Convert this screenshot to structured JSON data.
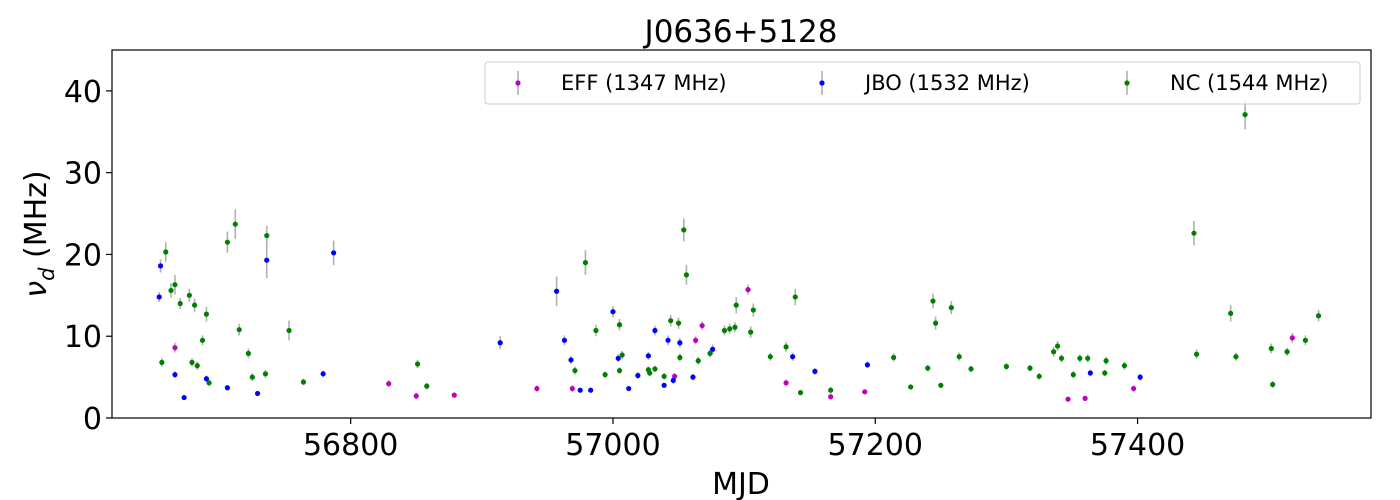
{
  "chart_data": {
    "type": "scatter",
    "title": "J0636+5128",
    "xlabel": "MJD",
    "ylabel_symbol": "ν",
    "ylabel_subscript": "d",
    "ylabel_unit": " (MHz)",
    "xlim": [
      56618,
      57578
    ],
    "ylim": [
      0,
      45
    ],
    "xticks": [
      56800,
      57000,
      57200,
      57400
    ],
    "yticks": [
      0,
      10,
      20,
      30,
      40
    ],
    "grid": false,
    "legend_position": "top-right",
    "errorbar_color": "#b0b0b0",
    "series": [
      {
        "name": "EFF (1347 MHz)",
        "color": "#bf00bf",
        "points": [
          [
            56666,
            8.6,
            0.6
          ],
          [
            56829,
            4.2,
            0.4
          ],
          [
            56850,
            2.7,
            0.4
          ],
          [
            56879,
            2.8,
            0.3
          ],
          [
            56942,
            3.6,
            0.4
          ],
          [
            56969,
            3.6,
            0.4
          ],
          [
            57047,
            5.1,
            0.4
          ],
          [
            57063,
            9.5,
            0.5
          ],
          [
            57068,
            11.3,
            0.5
          ],
          [
            57103,
            15.7,
            0.6
          ],
          [
            57132,
            4.3,
            0.4
          ],
          [
            57166,
            2.6,
            0.3
          ],
          [
            57192,
            3.2,
            0.3
          ],
          [
            57347,
            2.3,
            0.3
          ],
          [
            57360,
            2.4,
            0.3
          ],
          [
            57397,
            3.6,
            0.4
          ],
          [
            57518,
            9.8,
            0.6
          ]
        ]
      },
      {
        "name": "JBO (1532 MHz)",
        "color": "#0000ff",
        "points": [
          [
            56654,
            14.8,
            0.6
          ],
          [
            56655,
            18.6,
            0.8
          ],
          [
            56666,
            5.3,
            0.4
          ],
          [
            56673,
            2.5,
            0.3
          ],
          [
            56690,
            4.8,
            0.4
          ],
          [
            56706,
            3.7,
            0.3
          ],
          [
            56729,
            3.0,
            0.3
          ],
          [
            56736,
            19.3,
            2.2
          ],
          [
            56779,
            5.4,
            0.4
          ],
          [
            56787,
            20.2,
            1.5
          ],
          [
            56914,
            9.2,
            0.8
          ],
          [
            56957,
            15.5,
            1.8
          ],
          [
            56963,
            9.5,
            0.6
          ],
          [
            56968,
            7.1,
            0.5
          ],
          [
            56975,
            3.4,
            0.3
          ],
          [
            56983,
            3.4,
            0.3
          ],
          [
            57000,
            13.0,
            0.7
          ],
          [
            57004,
            7.3,
            0.5
          ],
          [
            57012,
            3.6,
            0.3
          ],
          [
            57019,
            5.2,
            0.4
          ],
          [
            57027,
            7.6,
            0.5
          ],
          [
            57032,
            10.7,
            0.6
          ],
          [
            57039,
            4.0,
            0.3
          ],
          [
            57042,
            9.5,
            0.6
          ],
          [
            57046,
            4.6,
            0.4
          ],
          [
            57051,
            9.2,
            0.6
          ],
          [
            57061,
            5.0,
            0.4
          ],
          [
            57076,
            8.4,
            0.6
          ],
          [
            57137,
            7.5,
            0.5
          ],
          [
            57154,
            5.7,
            0.4
          ],
          [
            57194,
            6.5,
            0.4
          ],
          [
            57364,
            5.5,
            0.4
          ],
          [
            57402,
            5.0,
            0.4
          ]
        ]
      },
      {
        "name": "NC (1544 MHz)",
        "color": "#008000",
        "points": [
          [
            56656,
            6.8,
            0.5
          ],
          [
            56659,
            20.3,
            1.2
          ],
          [
            56663,
            15.6,
            0.9
          ],
          [
            56666,
            16.3,
            1.2
          ],
          [
            56670,
            14.0,
            0.7
          ],
          [
            56677,
            15.0,
            0.8
          ],
          [
            56679,
            6.8,
            0.5
          ],
          [
            56681,
            13.8,
            0.8
          ],
          [
            56683,
            6.4,
            0.5
          ],
          [
            56687,
            9.5,
            0.6
          ],
          [
            56690,
            12.7,
            0.9
          ],
          [
            56692,
            4.3,
            0.4
          ],
          [
            56706,
            21.5,
            1.3
          ],
          [
            56712,
            23.7,
            1.8
          ],
          [
            56715,
            10.8,
            0.7
          ],
          [
            56722,
            7.9,
            0.6
          ],
          [
            56725,
            5.0,
            0.5
          ],
          [
            56735,
            5.4,
            0.5
          ],
          [
            56736,
            22.3,
            1.2
          ],
          [
            56753,
            10.7,
            1.2
          ],
          [
            56764,
            4.4,
            0.4
          ],
          [
            56851,
            6.6,
            0.5
          ],
          [
            56858,
            3.9,
            0.4
          ],
          [
            56971,
            5.8,
            0.5
          ],
          [
            56979,
            19.0,
            1.5
          ],
          [
            56987,
            10.7,
            0.7
          ],
          [
            56994,
            5.3,
            0.4
          ],
          [
            57005,
            11.4,
            0.7
          ],
          [
            57005,
            5.8,
            0.4
          ],
          [
            57007,
            7.7,
            0.5
          ],
          [
            57027,
            5.9,
            0.4
          ],
          [
            57028,
            5.5,
            0.4
          ],
          [
            57032,
            6.0,
            0.4
          ],
          [
            57039,
            5.1,
            0.4
          ],
          [
            57044,
            11.9,
            0.7
          ],
          [
            57050,
            11.6,
            0.7
          ],
          [
            57051,
            7.4,
            0.5
          ],
          [
            57054,
            23.0,
            1.4
          ],
          [
            57056,
            17.5,
            1.2
          ],
          [
            57065,
            7.0,
            0.5
          ],
          [
            57074,
            7.9,
            0.5
          ],
          [
            57085,
            10.7,
            0.6
          ],
          [
            57089,
            10.9,
            0.6
          ],
          [
            57093,
            11.1,
            0.6
          ],
          [
            57094,
            13.8,
            1.0
          ],
          [
            57105,
            10.5,
            0.7
          ],
          [
            57107,
            13.2,
            0.8
          ],
          [
            57120,
            7.5,
            0.5
          ],
          [
            57132,
            8.7,
            0.6
          ],
          [
            57139,
            14.8,
            1.0
          ],
          [
            57143,
            3.1,
            0.3
          ],
          [
            57166,
            3.4,
            0.4
          ],
          [
            57214,
            7.4,
            0.5
          ],
          [
            57227,
            3.8,
            0.3
          ],
          [
            57240,
            6.1,
            0.4
          ],
          [
            57244,
            14.3,
            0.9
          ],
          [
            57246,
            11.6,
            0.8
          ],
          [
            57250,
            4.0,
            0.3
          ],
          [
            57258,
            13.5,
            0.8
          ],
          [
            57264,
            7.5,
            0.5
          ],
          [
            57273,
            6.0,
            0.4
          ],
          [
            57300,
            6.3,
            0.4
          ],
          [
            57318,
            6.1,
            0.4
          ],
          [
            57325,
            5.1,
            0.4
          ],
          [
            57336,
            8.1,
            0.6
          ],
          [
            57339,
            8.8,
            0.6
          ],
          [
            57342,
            7.3,
            0.5
          ],
          [
            57351,
            5.3,
            0.4
          ],
          [
            57356,
            7.3,
            0.5
          ],
          [
            57362,
            7.3,
            0.5
          ],
          [
            57375,
            5.5,
            0.4
          ],
          [
            57376,
            7.0,
            0.5
          ],
          [
            57390,
            6.4,
            0.5
          ],
          [
            57443,
            22.6,
            1.5
          ],
          [
            57445,
            7.8,
            0.6
          ],
          [
            57471,
            12.8,
            1.0
          ],
          [
            57475,
            7.5,
            0.5
          ],
          [
            57482,
            37.1,
            1.8
          ],
          [
            57502,
            8.5,
            0.6
          ],
          [
            57503,
            4.1,
            0.4
          ],
          [
            57514,
            8.1,
            0.5
          ],
          [
            57528,
            9.5,
            0.6
          ],
          [
            57538,
            12.5,
            0.7
          ]
        ]
      }
    ]
  }
}
